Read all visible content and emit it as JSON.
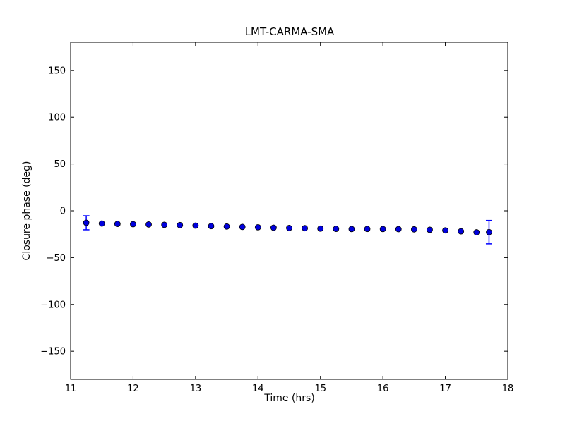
{
  "figure": {
    "background": "#ffffff"
  },
  "chart_data": {
    "type": "scatter",
    "title": "LMT-CARMA-SMA",
    "xlabel": "Time (hrs)",
    "ylabel": "Closure phase (deg)",
    "xlim": [
      11,
      18
    ],
    "ylim": [
      -180,
      180
    ],
    "xticks": [
      11,
      12,
      13,
      14,
      15,
      16,
      17,
      18
    ],
    "yticks": [
      -150,
      -100,
      -50,
      0,
      50,
      100,
      150
    ],
    "grid": false,
    "legend": null,
    "marker": "circle",
    "marker_color": "#0000dd",
    "marker_edge_color": "#000000",
    "errorbar_color": "#0000ff",
    "axis_color": "#000000",
    "series": [
      {
        "name": "LMT-CARMA-SMA closure phase",
        "x": [
          11.25,
          11.5,
          11.75,
          12.0,
          12.25,
          12.5,
          12.75,
          13.0,
          13.25,
          13.5,
          13.75,
          14.0,
          14.25,
          14.5,
          14.75,
          15.0,
          15.25,
          15.5,
          15.75,
          16.0,
          16.25,
          16.5,
          16.75,
          17.0,
          17.25,
          17.5,
          17.7
        ],
        "y": [
          -12.8,
          -13.6,
          -14.0,
          -14.3,
          -14.6,
          -15.0,
          -15.3,
          -15.8,
          -16.4,
          -16.8,
          -17.2,
          -17.6,
          -18.1,
          -18.4,
          -18.6,
          -19.0,
          -19.3,
          -19.5,
          -19.4,
          -19.5,
          -19.6,
          -19.8,
          -20.3,
          -20.9,
          -21.9,
          -23.0,
          -22.8
        ],
        "yerr": [
          7.5,
          null,
          null,
          null,
          null,
          null,
          null,
          null,
          null,
          null,
          null,
          null,
          null,
          null,
          null,
          null,
          null,
          null,
          null,
          null,
          null,
          null,
          null,
          null,
          null,
          null,
          12.5
        ]
      }
    ]
  }
}
